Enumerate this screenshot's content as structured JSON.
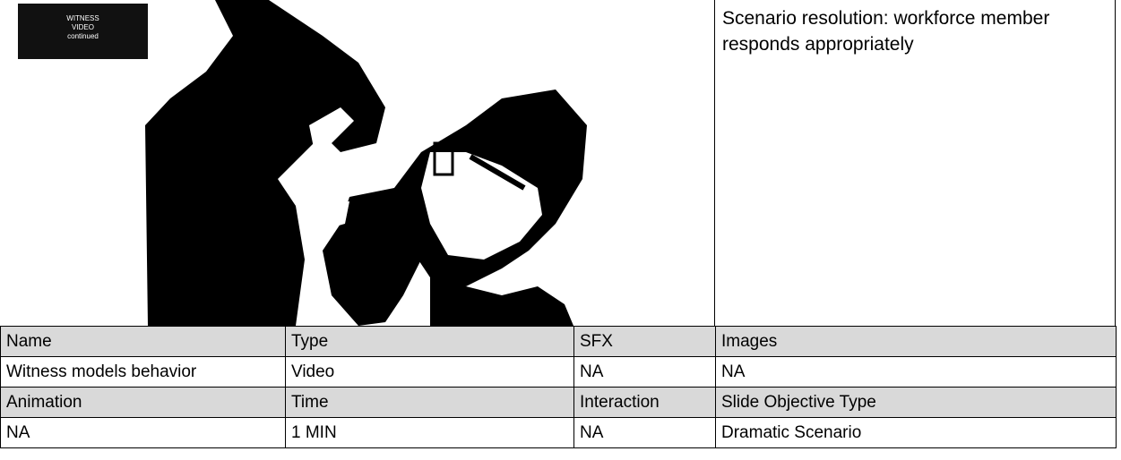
{
  "label": [
    "WITNESS",
    "VIDEO",
    "continued"
  ],
  "side_text": "Scenario resolution: workforce member responds appropriately",
  "table": {
    "rows": [
      [
        "Name",
        "Type",
        "SFX",
        "Images"
      ],
      [
        "Witness models behavior",
        "Video",
        "NA",
        "NA"
      ],
      [
        "Animation",
        "Time",
        "Interaction",
        "Slide Objective Type"
      ],
      [
        "NA",
        "1 MIN",
        "NA",
        "Dramatic Scenario"
      ]
    ]
  }
}
